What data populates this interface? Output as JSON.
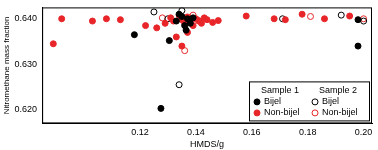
{
  "chart_data": {
    "type": "scatter",
    "x_label": "HMDS/g",
    "y_label": "Nitromethane mass fraction",
    "xlim": [
      0.085,
      0.203
    ],
    "xticks": [
      0.12,
      0.14,
      0.16,
      0.18,
      {
        "value": 0.2,
        "label": "0.20"
      }
    ],
    "ylim": [
      0.617,
      0.6425
    ],
    "yticks": [
      {
        "value": 0.62,
        "label": "0.620"
      },
      {
        "value": 0.63,
        "label": "0.630"
      },
      {
        "value": 0.64,
        "label": "0.640"
      }
    ],
    "grid": false,
    "legend": "bottom-right",
    "series": [
      {
        "name": "Bijel",
        "sample": "Sample 1",
        "color": "#000000",
        "marker": "circle",
        "x": [
          0.1275,
          0.1305,
          0.133,
          0.135,
          0.136,
          0.137,
          0.138,
          0.134,
          0.139,
          0.1365,
          0.198,
          0.198,
          0.118
        ],
        "values": [
          0.6203,
          0.6352,
          0.6395,
          0.6405,
          0.6385,
          0.64,
          0.639,
          0.641,
          0.6402,
          0.6375,
          0.634,
          0.6398,
          0.6365
        ]
      },
      {
        "name": "Non-bijel",
        "sample": "Sample 1",
        "color": "#e8262a",
        "marker": "circle",
        "x": [
          0.089,
          0.092,
          0.103,
          0.108,
          0.113,
          0.122,
          0.126,
          0.129,
          0.131,
          0.132,
          0.133,
          0.134,
          0.135,
          0.136,
          0.137,
          0.138,
          0.139,
          0.14,
          0.141,
          0.142,
          0.143,
          0.144,
          0.146,
          0.148,
          0.158,
          0.168,
          0.172,
          0.178,
          0.186,
          0.195,
          0.135,
          0.137
        ],
        "values": [
          0.6345,
          0.64,
          0.6395,
          0.64,
          0.6398,
          0.6385,
          0.638,
          0.639,
          0.6402,
          0.6395,
          0.636,
          0.6408,
          0.6398,
          0.639,
          0.6404,
          0.6395,
          0.6385,
          0.64,
          0.6396,
          0.639,
          0.6402,
          0.6398,
          0.6392,
          0.6396,
          0.6406,
          0.64,
          0.6398,
          0.641,
          0.64,
          0.6406,
          0.634,
          0.637
        ]
      },
      {
        "name": "Bijel",
        "sample": "Sample 2",
        "color": "#000000",
        "marker": "open_circle",
        "x": [
          0.125,
          0.13,
          0.134,
          0.135,
          0.137,
          0.171,
          0.192,
          0.2
        ],
        "values": [
          0.6415,
          0.64,
          0.6255,
          0.6418,
          0.6395,
          0.64,
          0.6408,
          0.6395
        ]
      },
      {
        "name": "Non-bijel",
        "sample": "Sample 2",
        "color": "#e8262a",
        "marker": "open_circle",
        "x": [
          0.128,
          0.136,
          0.139,
          0.141,
          0.181,
          0.2
        ],
        "values": [
          0.6402,
          0.633,
          0.6408,
          0.6395,
          0.6405,
          0.64
        ]
      }
    ]
  }
}
